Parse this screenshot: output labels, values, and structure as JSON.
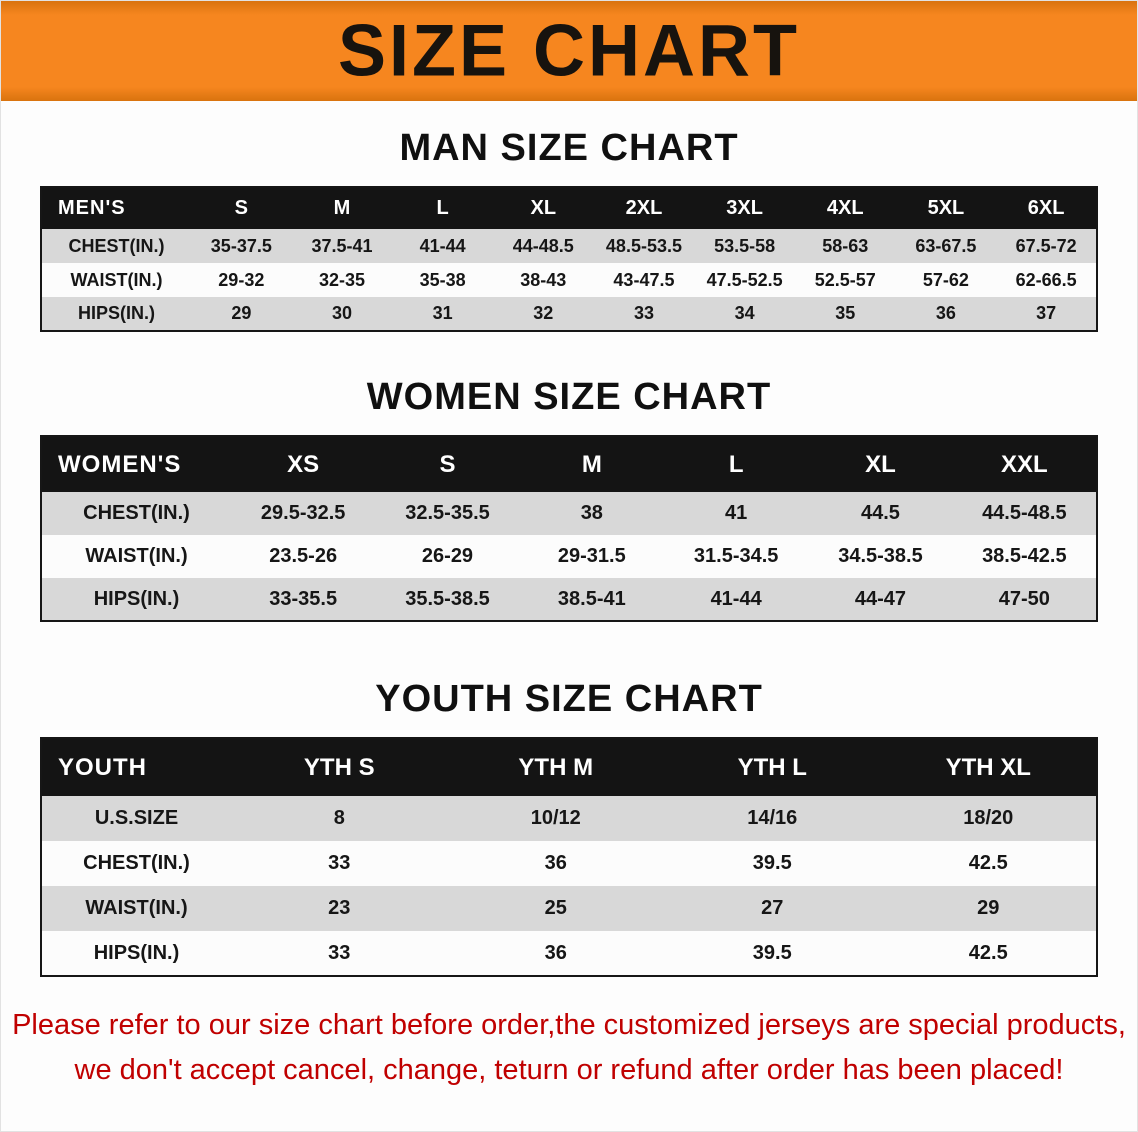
{
  "page": {
    "banner_title": "SIZE CHART",
    "disclaimer_line1": "Please refer to our size chart before order,the customized jerseys are special products,",
    "disclaimer_line2": "we don't accept cancel, change, teturn or refund after order has been placed!"
  },
  "colors": {
    "banner": "#f6861f",
    "table_header": "#141414",
    "row_shade": "#d8d8d8",
    "disclaimer": "#c00000"
  },
  "sections": {
    "men": {
      "heading": "MAN SIZE CHART",
      "table": {
        "corner": "MEN'S",
        "columns": [
          "S",
          "M",
          "L",
          "XL",
          "2XL",
          "3XL",
          "4XL",
          "5XL",
          "6XL"
        ],
        "rows": [
          {
            "label": "CHEST(IN.)",
            "values": [
              "35-37.5",
              "37.5-41",
              "41-44",
              "44-48.5",
              "48.5-53.5",
              "53.5-58",
              "58-63",
              "63-67.5",
              "67.5-72"
            ]
          },
          {
            "label": "WAIST(IN.)",
            "values": [
              "29-32",
              "32-35",
              "35-38",
              "38-43",
              "43-47.5",
              "47.5-52.5",
              "52.5-57",
              "57-62",
              "62-66.5"
            ]
          },
          {
            "label": "HIPS(IN.)",
            "values": [
              "29",
              "30",
              "31",
              "32",
              "33",
              "34",
              "35",
              "36",
              "37"
            ]
          }
        ]
      }
    },
    "women": {
      "heading": "WOMEN SIZE CHART",
      "table": {
        "corner": "WOMEN'S",
        "columns": [
          "XS",
          "S",
          "M",
          "L",
          "XL",
          "XXL"
        ],
        "rows": [
          {
            "label": "CHEST(IN.)",
            "values": [
              "29.5-32.5",
              "32.5-35.5",
              "38",
              "41",
              "44.5",
              "44.5-48.5"
            ]
          },
          {
            "label": "WAIST(IN.)",
            "values": [
              "23.5-26",
              "26-29",
              "29-31.5",
              "31.5-34.5",
              "34.5-38.5",
              "38.5-42.5"
            ]
          },
          {
            "label": "HIPS(IN.)",
            "values": [
              "33-35.5",
              "35.5-38.5",
              "38.5-41",
              "41-44",
              "44-47",
              "47-50"
            ]
          }
        ]
      }
    },
    "youth": {
      "heading": "YOUTH SIZE CHART",
      "table": {
        "corner": "YOUTH",
        "columns": [
          "YTH S",
          "YTH M",
          "YTH L",
          "YTH XL"
        ],
        "rows": [
          {
            "label": "U.S.SIZE",
            "values": [
              "8",
              "10/12",
              "14/16",
              "18/20"
            ]
          },
          {
            "label": "CHEST(IN.)",
            "values": [
              "33",
              "36",
              "39.5",
              "42.5"
            ]
          },
          {
            "label": "WAIST(IN.)",
            "values": [
              "23",
              "25",
              "27",
              "29"
            ]
          },
          {
            "label": "HIPS(IN.)",
            "values": [
              "33",
              "36",
              "39.5",
              "42.5"
            ]
          }
        ]
      }
    }
  }
}
